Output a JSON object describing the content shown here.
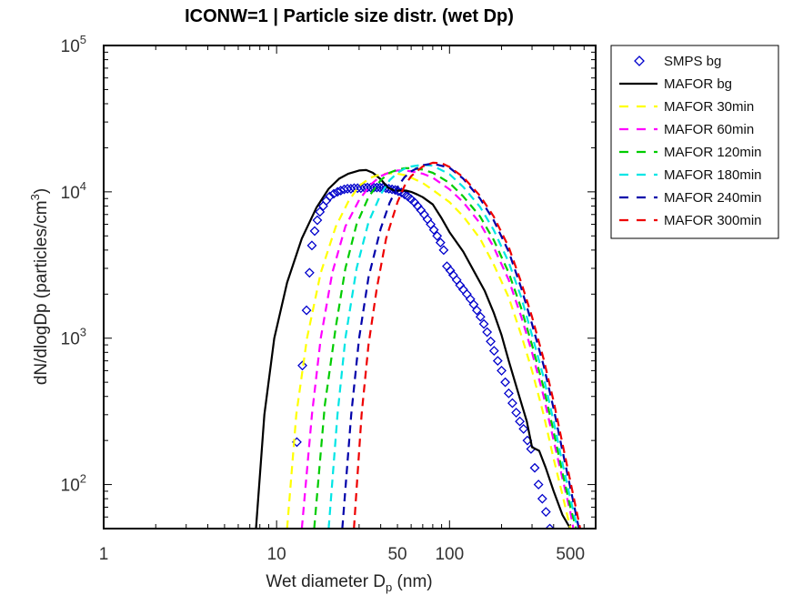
{
  "chart_data": {
    "type": "line",
    "title": "ICONW=1 | Particle size distr. (wet Dp)",
    "xlabel": {
      "main": "Wet diameter D",
      "sub": "p",
      "tail": " (nm)"
    },
    "ylabel": {
      "main": "dN/dlogDp (particles/cm",
      "sup": "3",
      "tail": ")"
    },
    "x_scale": "log",
    "y_scale": "log",
    "xlim": [
      1,
      700
    ],
    "ylim": [
      50,
      100000
    ],
    "x_ticks": [
      {
        "value": 1,
        "label": "1"
      },
      {
        "value": 10,
        "label": "10"
      },
      {
        "value": 50,
        "label": "50"
      },
      {
        "value": 100,
        "label": "100"
      },
      {
        "value": 500,
        "label": "500"
      }
    ],
    "y_ticks": [
      {
        "value": 100,
        "base": "10",
        "exp": "2"
      },
      {
        "value": 1000,
        "base": "10",
        "exp": "3"
      },
      {
        "value": 10000,
        "base": "10",
        "exp": "4"
      },
      {
        "value": 100000,
        "base": "10",
        "exp": "5"
      }
    ],
    "legend_position": "outside-right",
    "series": [
      {
        "name": "SMPS bg",
        "style": "diamond",
        "color": "#0000cc",
        "x": [
          13.1,
          14.1,
          14.9,
          15.5,
          16.0,
          16.6,
          17.2,
          17.8,
          18.6,
          19.4,
          20.3,
          21.4,
          22.5,
          23.5,
          24.6,
          25.7,
          26.9,
          28.1,
          29.4,
          30.7,
          32.1,
          33.5,
          35.0,
          36.5,
          38.0,
          39.6,
          41.2,
          42.9,
          44.6,
          46.5,
          48.5,
          50.5,
          52.7,
          55.0,
          57.4,
          59.9,
          62.6,
          65.4,
          68.3,
          71.4,
          74.5,
          77.8,
          81.2,
          84.8,
          88.6,
          92.5,
          96.6,
          101,
          105,
          110,
          115,
          120,
          126,
          132,
          138,
          144,
          151,
          158,
          165,
          173,
          181,
          190,
          200,
          210,
          220,
          231,
          243,
          255,
          268,
          282,
          296,
          311,
          327,
          344,
          361,
          380
        ],
        "y": [
          195,
          650,
          1550,
          2800,
          4300,
          5400,
          6400,
          7300,
          8000,
          8700,
          9300,
          9700,
          10000,
          10200,
          10400,
          10500,
          10500,
          10600,
          10600,
          10600,
          10700,
          10700,
          10700,
          10700,
          10700,
          10700,
          10700,
          10600,
          10500,
          10400,
          10300,
          10100,
          9900,
          9600,
          9300,
          8900,
          8500,
          8000,
          7500,
          7000,
          6500,
          6000,
          5500,
          5000,
          4500,
          4000,
          3100,
          2900,
          2700,
          2500,
          2300,
          2150,
          2000,
          1850,
          1700,
          1550,
          1400,
          1250,
          1100,
          950,
          820,
          700,
          600,
          500,
          420,
          360,
          310,
          270,
          240,
          200,
          175,
          130,
          100,
          80,
          65,
          50
        ]
      },
      {
        "name": "MAFOR bg",
        "style": "solid",
        "color": "#000000",
        "x": [
          7.6,
          8.5,
          9.7,
          11.5,
          14,
          17,
          20,
          23,
          26,
          30,
          33,
          36,
          40,
          44,
          48,
          52,
          56,
          60,
          65,
          70,
          80,
          90,
          100,
          120,
          140,
          160,
          180,
          200,
          220,
          250,
          280,
          300,
          330,
          360,
          400,
          450,
          500
        ],
        "y": [
          50,
          300,
          1000,
          2400,
          4800,
          7800,
          10500,
          12300,
          13300,
          14000,
          14100,
          13500,
          12200,
          10700,
          10200,
          10200,
          10200,
          10000,
          9600,
          9200,
          8200,
          6600,
          5300,
          3900,
          2800,
          2100,
          1500,
          1050,
          700,
          420,
          270,
          180,
          170,
          130,
          90,
          62,
          50
        ]
      },
      {
        "name": "MAFOR 30min",
        "style": "dashed",
        "color": "#ffff00",
        "x": [
          11.5,
          13,
          15,
          18,
          22,
          26,
          30,
          35,
          40,
          45,
          50,
          55,
          60,
          70,
          80,
          100,
          120,
          150,
          180,
          220,
          260,
          300,
          350,
          400,
          450,
          500
        ],
        "y": [
          50,
          300,
          1000,
          2800,
          5800,
          8600,
          11000,
          12500,
          13200,
          13400,
          13300,
          13000,
          12500,
          11500,
          10300,
          8500,
          6800,
          4800,
          3200,
          1900,
          1050,
          600,
          300,
          150,
          85,
          50
        ]
      },
      {
        "name": "MAFOR 60min",
        "style": "dashed",
        "color": "#ff00ff",
        "x": [
          14,
          16,
          18,
          21,
          25,
          30,
          35,
          40,
          45,
          50,
          55,
          60,
          70,
          80,
          100,
          120,
          150,
          180,
          220,
          260,
          300,
          350,
          400,
          450,
          500,
          520
        ],
        "y": [
          50,
          300,
          1000,
          2800,
          5800,
          8800,
          11200,
          12800,
          13600,
          14000,
          14000,
          13800,
          13300,
          12500,
          10400,
          8500,
          6100,
          4200,
          2500,
          1400,
          800,
          400,
          200,
          110,
          65,
          50
        ]
      },
      {
        "name": "MAFOR 120min",
        "style": "dashed",
        "color": "#00cc00",
        "x": [
          16.5,
          19,
          22,
          25,
          29,
          34,
          40,
          45,
          50,
          55,
          60,
          70,
          80,
          100,
          120,
          150,
          180,
          220,
          260,
          300,
          350,
          400,
          450,
          500,
          540
        ],
        "y": [
          50,
          350,
          1200,
          3000,
          6000,
          9200,
          12000,
          13500,
          14200,
          14500,
          14500,
          14200,
          13500,
          11500,
          9300,
          6800,
          4700,
          2800,
          1600,
          900,
          460,
          230,
          120,
          70,
          50
        ]
      },
      {
        "name": "MAFOR 180min",
        "style": "dashed",
        "color": "#00e5e5",
        "x": [
          20,
          22.5,
          25,
          29,
          34,
          40,
          45,
          50,
          55,
          60,
          70,
          80,
          100,
          120,
          150,
          180,
          220,
          260,
          300,
          350,
          400,
          450,
          500,
          550
        ],
        "y": [
          50,
          300,
          1000,
          3000,
          6200,
          9600,
          12000,
          13500,
          14400,
          14900,
          15300,
          15100,
          13200,
          10800,
          7900,
          5500,
          3300,
          1900,
          1050,
          540,
          270,
          140,
          80,
          50
        ]
      },
      {
        "name": "MAFOR 240min",
        "style": "dashed",
        "color": "#0000aa",
        "x": [
          24,
          27,
          30,
          34,
          40,
          45,
          50,
          55,
          60,
          70,
          80,
          100,
          120,
          150,
          180,
          220,
          260,
          300,
          350,
          400,
          450,
          500,
          560
        ],
        "y": [
          50,
          300,
          1000,
          2600,
          5600,
          8400,
          10800,
          12600,
          13800,
          15200,
          15600,
          14600,
          12300,
          9000,
          6400,
          3900,
          2200,
          1250,
          650,
          330,
          170,
          95,
          50
        ]
      },
      {
        "name": "MAFOR 300min",
        "style": "dashed",
        "color": "#ee0000",
        "x": [
          28,
          31,
          34,
          38,
          43,
          50,
          55,
          60,
          70,
          80,
          90,
          100,
          120,
          150,
          180,
          220,
          260,
          300,
          350,
          400,
          450,
          500,
          570
        ],
        "y": [
          50,
          300,
          900,
          2200,
          4800,
          8500,
          11000,
          12800,
          14900,
          15800,
          15700,
          14800,
          12600,
          9400,
          6800,
          4200,
          2400,
          1400,
          720,
          370,
          190,
          105,
          50
        ]
      }
    ]
  }
}
